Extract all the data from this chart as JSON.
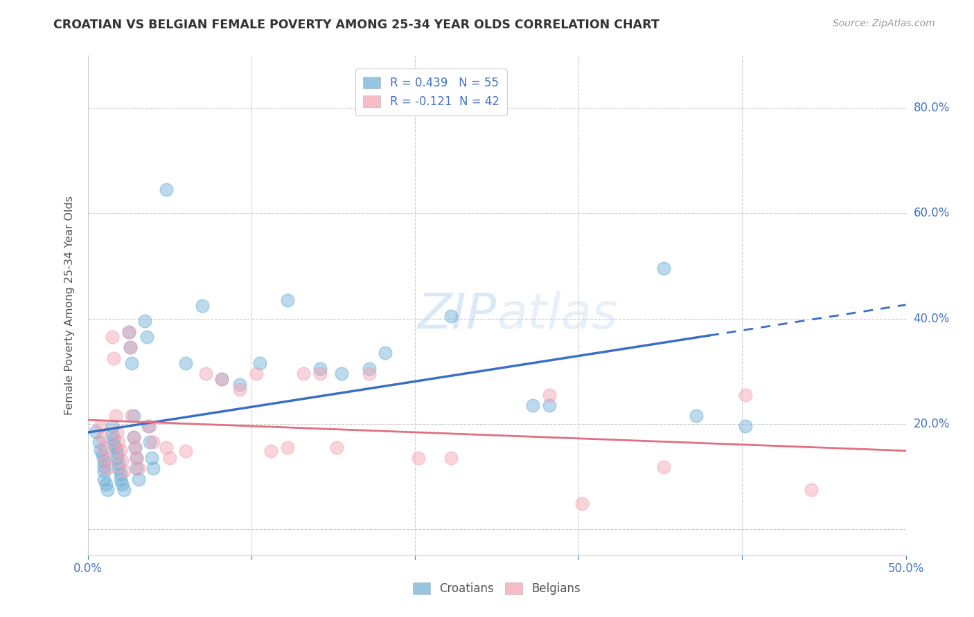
{
  "title": "CROATIAN VS BELGIAN FEMALE POVERTY AMONG 25-34 YEAR OLDS CORRELATION CHART",
  "source": "Source: ZipAtlas.com",
  "ylabel": "Female Poverty Among 25-34 Year Olds",
  "xlim": [
    0.0,
    0.5
  ],
  "ylim": [
    -0.05,
    0.9
  ],
  "xticks": [
    0.0,
    0.1,
    0.2,
    0.3,
    0.4,
    0.5
  ],
  "xticklabels": [
    "0.0%",
    "",
    "",
    "",
    "",
    "50.0%"
  ],
  "ytick_positions": [
    0.0,
    0.2,
    0.4,
    0.6,
    0.8
  ],
  "yticklabels": [
    "",
    "20.0%",
    "40.0%",
    "60.0%",
    "80.0%"
  ],
  "croatian_color": "#6baed6",
  "belgian_color": "#f4a0b0",
  "line_blue": "#3a6fc4",
  "line_pink": "#e07080",
  "croatian_R": 0.439,
  "croatian_N": 55,
  "belgian_R": -0.121,
  "belgian_N": 42,
  "background_color": "#ffffff",
  "grid_color": "#cccccc",
  "croatian_points": [
    [
      0.005,
      0.185
    ],
    [
      0.007,
      0.165
    ],
    [
      0.008,
      0.15
    ],
    [
      0.009,
      0.14
    ],
    [
      0.01,
      0.13
    ],
    [
      0.01,
      0.12
    ],
    [
      0.01,
      0.11
    ],
    [
      0.01,
      0.095
    ],
    [
      0.011,
      0.085
    ],
    [
      0.012,
      0.075
    ],
    [
      0.015,
      0.195
    ],
    [
      0.015,
      0.18
    ],
    [
      0.016,
      0.17
    ],
    [
      0.016,
      0.16
    ],
    [
      0.017,
      0.155
    ],
    [
      0.018,
      0.145
    ],
    [
      0.018,
      0.135
    ],
    [
      0.019,
      0.125
    ],
    [
      0.019,
      0.115
    ],
    [
      0.02,
      0.105
    ],
    [
      0.02,
      0.095
    ],
    [
      0.021,
      0.085
    ],
    [
      0.022,
      0.075
    ],
    [
      0.025,
      0.375
    ],
    [
      0.026,
      0.345
    ],
    [
      0.027,
      0.315
    ],
    [
      0.028,
      0.215
    ],
    [
      0.028,
      0.175
    ],
    [
      0.029,
      0.155
    ],
    [
      0.03,
      0.135
    ],
    [
      0.03,
      0.115
    ],
    [
      0.031,
      0.095
    ],
    [
      0.035,
      0.395
    ],
    [
      0.036,
      0.365
    ],
    [
      0.037,
      0.195
    ],
    [
      0.038,
      0.165
    ],
    [
      0.039,
      0.135
    ],
    [
      0.04,
      0.115
    ],
    [
      0.048,
      0.645
    ],
    [
      0.06,
      0.315
    ],
    [
      0.07,
      0.425
    ],
    [
      0.082,
      0.285
    ],
    [
      0.093,
      0.275
    ],
    [
      0.105,
      0.315
    ],
    [
      0.122,
      0.435
    ],
    [
      0.142,
      0.305
    ],
    [
      0.155,
      0.295
    ],
    [
      0.172,
      0.305
    ],
    [
      0.182,
      0.335
    ],
    [
      0.222,
      0.405
    ],
    [
      0.272,
      0.235
    ],
    [
      0.282,
      0.235
    ],
    [
      0.352,
      0.495
    ],
    [
      0.372,
      0.215
    ],
    [
      0.402,
      0.195
    ]
  ],
  "belgian_points": [
    [
      0.008,
      0.195
    ],
    [
      0.009,
      0.175
    ],
    [
      0.01,
      0.155
    ],
    [
      0.011,
      0.135
    ],
    [
      0.012,
      0.115
    ],
    [
      0.015,
      0.365
    ],
    [
      0.016,
      0.325
    ],
    [
      0.017,
      0.215
    ],
    [
      0.018,
      0.185
    ],
    [
      0.019,
      0.165
    ],
    [
      0.02,
      0.15
    ],
    [
      0.021,
      0.13
    ],
    [
      0.022,
      0.11
    ],
    [
      0.025,
      0.375
    ],
    [
      0.026,
      0.345
    ],
    [
      0.027,
      0.215
    ],
    [
      0.028,
      0.175
    ],
    [
      0.029,
      0.155
    ],
    [
      0.03,
      0.135
    ],
    [
      0.031,
      0.115
    ],
    [
      0.038,
      0.195
    ],
    [
      0.04,
      0.165
    ],
    [
      0.048,
      0.155
    ],
    [
      0.05,
      0.135
    ],
    [
      0.06,
      0.148
    ],
    [
      0.072,
      0.295
    ],
    [
      0.082,
      0.285
    ],
    [
      0.093,
      0.265
    ],
    [
      0.103,
      0.295
    ],
    [
      0.112,
      0.148
    ],
    [
      0.122,
      0.155
    ],
    [
      0.132,
      0.295
    ],
    [
      0.142,
      0.295
    ],
    [
      0.152,
      0.155
    ],
    [
      0.172,
      0.295
    ],
    [
      0.202,
      0.135
    ],
    [
      0.222,
      0.135
    ],
    [
      0.282,
      0.255
    ],
    [
      0.302,
      0.048
    ],
    [
      0.352,
      0.118
    ],
    [
      0.402,
      0.255
    ],
    [
      0.442,
      0.075
    ]
  ]
}
